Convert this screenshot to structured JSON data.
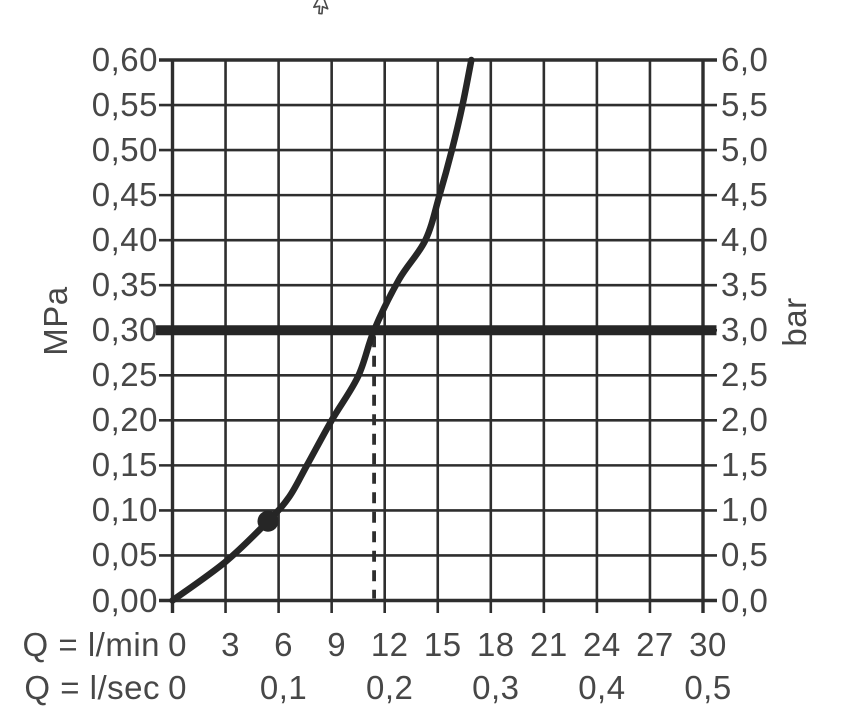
{
  "cursor": {
    "type": "arrow-pointer"
  },
  "colors": {
    "background": "#ffffff",
    "grid_line": "#2e2e2e",
    "curve": "#262626",
    "reference_line": "#262626",
    "marker_dot": "#262626",
    "text": "#474747"
  },
  "chart_data": {
    "type": "line",
    "title": "",
    "grid": "on",
    "left_axis": {
      "label": "MPa",
      "range": [
        0.0,
        0.6
      ],
      "step": 0.05,
      "ticks": [
        "0,60",
        "0,55",
        "0,50",
        "0,45",
        "0,40",
        "0,35",
        "0,30",
        "0,25",
        "0,20",
        "0,15",
        "0,10",
        "0,05",
        "0,00"
      ]
    },
    "right_axis": {
      "label": "bar",
      "range": [
        0.0,
        6.0
      ],
      "step": 0.5,
      "ticks": [
        "6,0",
        "5,5",
        "5,0",
        "4,5",
        "4,0",
        "3,5",
        "3,0",
        "2,5",
        "2,0",
        "1,5",
        "1,0",
        "0,5",
        "0,0"
      ]
    },
    "x_axis_primary": {
      "label": "Q = l/min",
      "range": [
        0,
        30
      ],
      "step": 3,
      "ticks": [
        "0",
        "3",
        "6",
        "9",
        "12",
        "15",
        "18",
        "21",
        "24",
        "27",
        "30"
      ]
    },
    "x_axis_secondary": {
      "label": "Q = l/sec",
      "entries": [
        {
          "label": "0",
          "at_lmin": 0
        },
        {
          "label": "0,1",
          "at_lmin": 6
        },
        {
          "label": "0,2",
          "at_lmin": 12
        },
        {
          "label": "0,3",
          "at_lmin": 18
        },
        {
          "label": "0,4",
          "at_lmin": 24
        },
        {
          "label": "0,5",
          "at_lmin": 30
        }
      ]
    },
    "series": [
      {
        "name": "flow-curve",
        "points_lmin_mpa": [
          [
            0,
            0.0
          ],
          [
            3,
            0.043
          ],
          [
            5.4,
            0.088
          ],
          [
            6.6,
            0.115
          ],
          [
            7.6,
            0.15
          ],
          [
            9.0,
            0.2
          ],
          [
            10.5,
            0.249
          ],
          [
            11.4,
            0.3
          ],
          [
            12.8,
            0.356
          ],
          [
            14.3,
            0.4
          ],
          [
            15.1,
            0.45
          ],
          [
            15.8,
            0.5
          ],
          [
            16.4,
            0.55
          ],
          [
            16.9,
            0.6
          ]
        ]
      }
    ],
    "reference_line": {
      "mpa": 0.3,
      "bar": 3.0
    },
    "marker_point": {
      "lmin": 5.4,
      "mpa": 0.088
    },
    "dashed_guide": {
      "lmin": 11.4,
      "from_mpa": 0.0,
      "to_mpa": 0.3
    }
  }
}
